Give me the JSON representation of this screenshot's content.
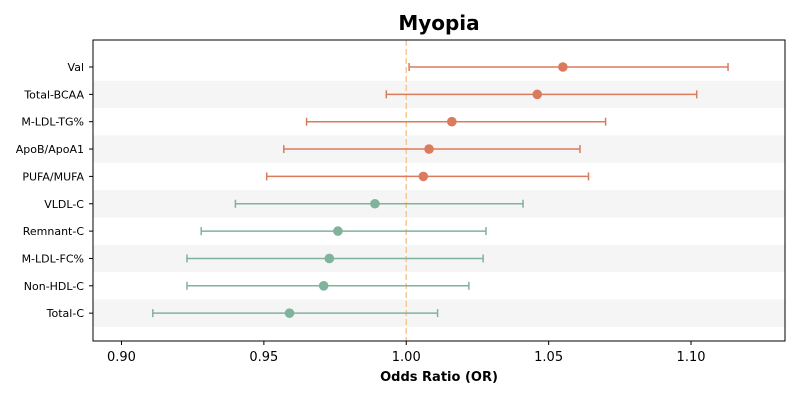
{
  "chart_data": {
    "type": "forest",
    "title": "Myopia",
    "xlabel": "Odds Ratio (OR)",
    "ylabel": "",
    "xlim": [
      0.89,
      1.133
    ],
    "xticks": [
      0.9,
      0.95,
      1.0,
      1.05,
      1.1
    ],
    "xtick_labels": [
      "0.90",
      "0.95",
      "1.00",
      "1.05",
      "1.10"
    ],
    "reference_line": 1.0,
    "reference_color": "#f5c896",
    "colors": {
      "positive": "#db7b5e",
      "negative": "#7fb39b"
    },
    "categories": [
      "Val",
      "Total-BCAA",
      "M-LDL-TG%",
      "ApoB/ApoA1",
      "PUFA/MUFA",
      "VLDL-C",
      "Remnant-C",
      "M-LDL-FC%",
      "Non-HDL-C",
      "Total-C"
    ],
    "or": [
      1.055,
      1.046,
      1.016,
      1.008,
      1.006,
      0.989,
      0.976,
      0.973,
      0.971,
      0.959
    ],
    "ci_lower": [
      1.001,
      0.993,
      0.965,
      0.957,
      0.951,
      0.94,
      0.928,
      0.923,
      0.923,
      0.911
    ],
    "ci_upper": [
      1.113,
      1.102,
      1.07,
      1.061,
      1.064,
      1.041,
      1.028,
      1.027,
      1.022,
      1.011
    ]
  }
}
